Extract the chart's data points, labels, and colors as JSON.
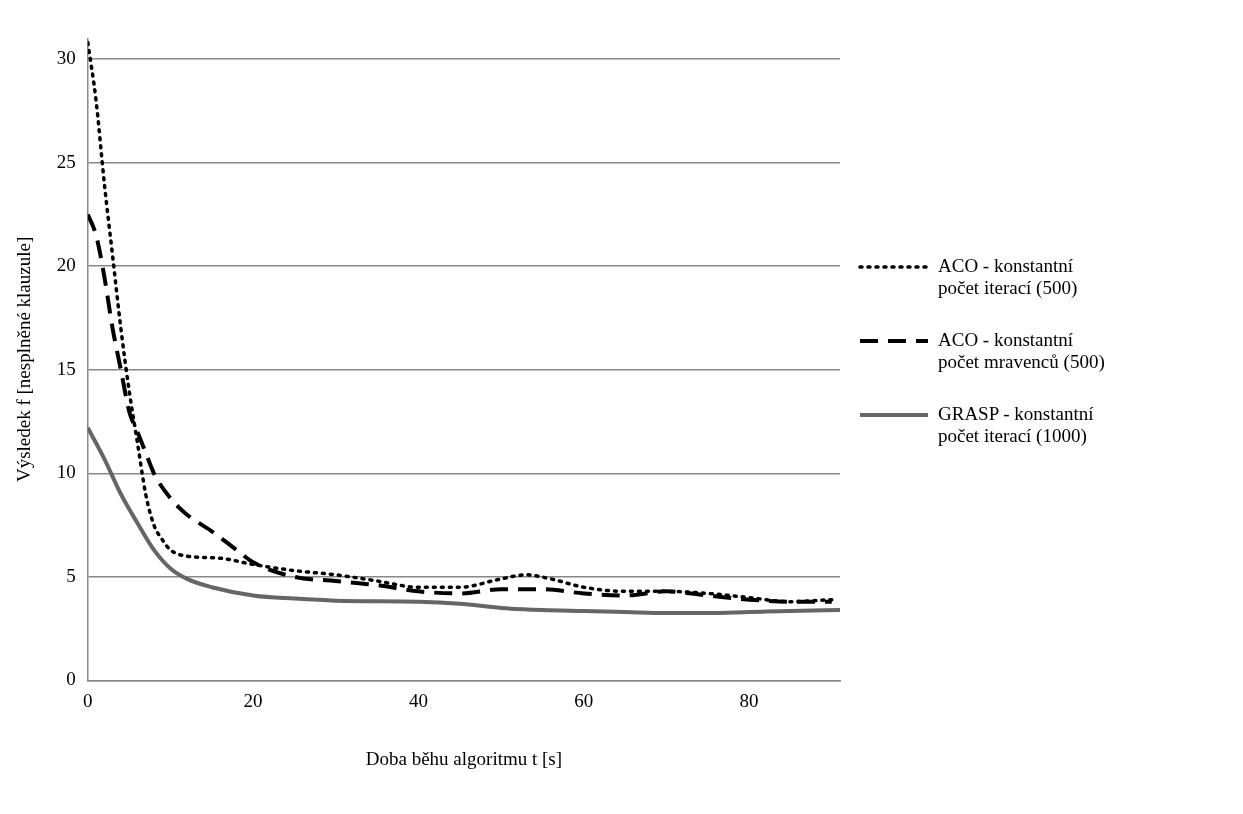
{
  "chart_data": {
    "type": "line",
    "xlabel": "Doba běhu algoritmu t [s]",
    "ylabel": "Výsledek f [nesplněné klauzule]",
    "xlim": [
      0,
      91
    ],
    "xticks": [
      0,
      20,
      40,
      60,
      80
    ],
    "ylim": [
      0,
      31
    ],
    "yticks": [
      0,
      5,
      10,
      15,
      20,
      25,
      30
    ],
    "grid": "y",
    "legend": "right",
    "marker": "none",
    "series": [
      {
        "name": "ACO - konstantní počet iterací (500)",
        "color": "#000000",
        "line_style": "dotted",
        "x": [
          0,
          1,
          2,
          3,
          4,
          5,
          6,
          7,
          8,
          9,
          10,
          12,
          16,
          20,
          25,
          30,
          35,
          40,
          45,
          50,
          53,
          56,
          60,
          65,
          70,
          75,
          80,
          85,
          90
        ],
        "values": [
          30.8,
          28,
          24,
          20.5,
          17,
          14,
          11.5,
          9,
          7.5,
          6.8,
          6.3,
          6.0,
          5.9,
          5.6,
          5.3,
          5.1,
          4.8,
          4.5,
          4.5,
          4.9,
          5.1,
          4.9,
          4.5,
          4.3,
          4.3,
          4.2,
          4.0,
          3.8,
          3.9
        ]
      },
      {
        "name": "ACO - konstantní počet mravenců (500)",
        "color": "#000000",
        "line_style": "dashed",
        "x": [
          0,
          1,
          2,
          3,
          4,
          5,
          6,
          7,
          8,
          10,
          12,
          15,
          18,
          20,
          25,
          30,
          35,
          40,
          45,
          50,
          55,
          60,
          65,
          70,
          75,
          80,
          85,
          90
        ],
        "values": [
          22.5,
          21.5,
          19.5,
          17,
          15,
          13,
          12,
          11,
          10,
          8.8,
          8,
          7.2,
          6.3,
          5.7,
          5,
          4.8,
          4.6,
          4.3,
          4.2,
          4.4,
          4.4,
          4.2,
          4.1,
          4.3,
          4.1,
          3.9,
          3.8,
          3.8
        ]
      },
      {
        "name": "GRASP - konstantní počet iterací (1000)",
        "color": "#666666",
        "line_style": "solid",
        "x": [
          0,
          2,
          4,
          6,
          8,
          10,
          12,
          15,
          20,
          25,
          30,
          40,
          45,
          50,
          55,
          60,
          65,
          70,
          75,
          80,
          85,
          91
        ],
        "values": [
          12.2,
          10.7,
          9,
          7.6,
          6.3,
          5.4,
          4.9,
          4.5,
          4.1,
          3.95,
          3.85,
          3.8,
          3.7,
          3.5,
          3.4,
          3.35,
          3.3,
          3.25,
          3.25,
          3.3,
          3.35,
          3.4
        ]
      }
    ]
  }
}
